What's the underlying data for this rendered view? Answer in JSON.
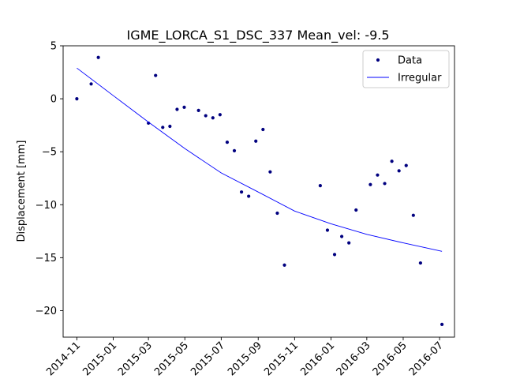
{
  "chart_data": {
    "type": "scatter",
    "title": "IGME_LORCA_S1_DSC_337     Mean_vel: -9.5",
    "xlabel": "",
    "ylabel": "Displacement [mm]",
    "xlim": [
      "2014-10-09",
      "2016-07-26"
    ],
    "ylim": [
      -22.5,
      5.0
    ],
    "x_ticks": [
      "2014-11",
      "2015-01",
      "2015-03",
      "2015-05",
      "2015-07",
      "2015-09",
      "2015-11",
      "2016-01",
      "2016-03",
      "2016-05",
      "2016-07"
    ],
    "y_ticks": [
      5,
      0,
      -5,
      -10,
      -15,
      -20
    ],
    "legend_position": "top-right",
    "series": [
      {
        "name": "Data",
        "kind": "points",
        "color": "#00007f",
        "points": [
          {
            "x": "2014-11-01",
            "y": 0.0
          },
          {
            "x": "2014-11-25",
            "y": 1.4
          },
          {
            "x": "2014-12-07",
            "y": 3.9
          },
          {
            "x": "2015-03-01",
            "y": -2.3
          },
          {
            "x": "2015-03-13",
            "y": 2.2
          },
          {
            "x": "2015-03-25",
            "y": -2.7
          },
          {
            "x": "2015-04-06",
            "y": -2.6
          },
          {
            "x": "2015-04-18",
            "y": -1.0
          },
          {
            "x": "2015-04-30",
            "y": -0.8
          },
          {
            "x": "2015-05-24",
            "y": -1.1
          },
          {
            "x": "2015-06-05",
            "y": -1.6
          },
          {
            "x": "2015-06-17",
            "y": -1.8
          },
          {
            "x": "2015-06-29",
            "y": -1.5
          },
          {
            "x": "2015-07-11",
            "y": -4.1
          },
          {
            "x": "2015-07-23",
            "y": -4.9
          },
          {
            "x": "2015-08-04",
            "y": -8.8
          },
          {
            "x": "2015-08-16",
            "y": -9.2
          },
          {
            "x": "2015-08-28",
            "y": -4.0
          },
          {
            "x": "2015-09-09",
            "y": -2.9
          },
          {
            "x": "2015-09-21",
            "y": -6.9
          },
          {
            "x": "2015-10-03",
            "y": -10.8
          },
          {
            "x": "2015-10-15",
            "y": -15.7
          },
          {
            "x": "2015-12-14",
            "y": -8.2
          },
          {
            "x": "2015-12-26",
            "y": -12.4
          },
          {
            "x": "2016-01-07",
            "y": -14.7
          },
          {
            "x": "2016-01-19",
            "y": -13.0
          },
          {
            "x": "2016-01-31",
            "y": -13.6
          },
          {
            "x": "2016-02-12",
            "y": -10.5
          },
          {
            "x": "2016-03-07",
            "y": -8.1
          },
          {
            "x": "2016-03-19",
            "y": -7.2
          },
          {
            "x": "2016-03-31",
            "y": -8.0
          },
          {
            "x": "2016-04-12",
            "y": -5.9
          },
          {
            "x": "2016-04-24",
            "y": -6.8
          },
          {
            "x": "2016-05-06",
            "y": -6.3
          },
          {
            "x": "2016-05-18",
            "y": -11.0
          },
          {
            "x": "2016-05-30",
            "y": -15.5
          },
          {
            "x": "2016-07-05",
            "y": -21.3
          }
        ]
      },
      {
        "name": "Irregular",
        "kind": "line",
        "color": "#0000ff",
        "points": [
          {
            "x": "2014-11-01",
            "y": 2.9
          },
          {
            "x": "2015-01-01",
            "y": 0.3
          },
          {
            "x": "2015-03-01",
            "y": -2.2
          },
          {
            "x": "2015-05-01",
            "y": -4.7
          },
          {
            "x": "2015-07-01",
            "y": -7.0
          },
          {
            "x": "2015-09-01",
            "y": -8.8
          },
          {
            "x": "2015-11-01",
            "y": -10.6
          },
          {
            "x": "2016-01-01",
            "y": -11.8
          },
          {
            "x": "2016-03-01",
            "y": -12.8
          },
          {
            "x": "2016-05-01",
            "y": -13.6
          },
          {
            "x": "2016-07-05",
            "y": -14.4
          }
        ]
      }
    ]
  }
}
